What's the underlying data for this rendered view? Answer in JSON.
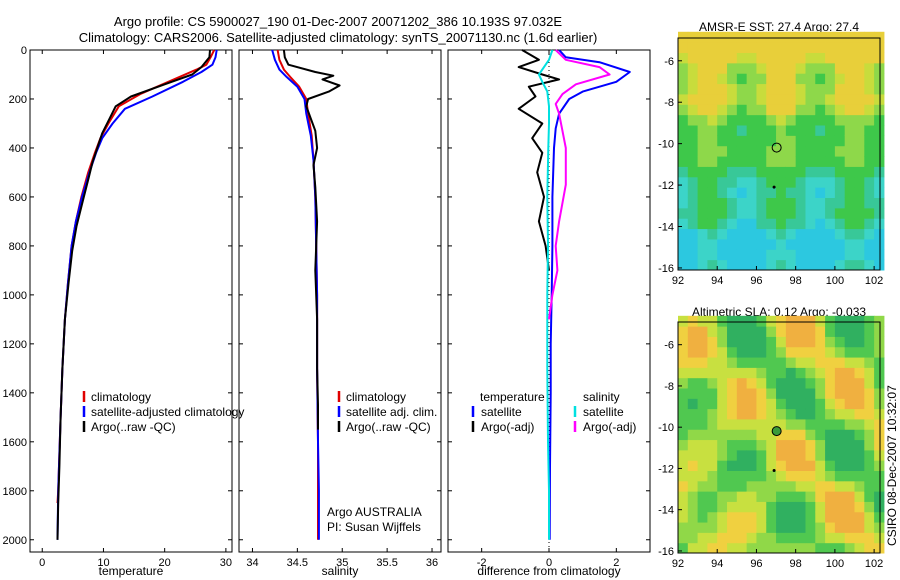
{
  "header": {
    "line1": "Argo profile: CS 5900027_190 01-Dec-2007 20071202_386 10.193S 97.032E",
    "line2": "Climatology: CARS2006. Satellite-adjusted climatology: synTS_20071130.nc (1.6d earlier)"
  },
  "side_text": "CSIRO 08-Dec-2007 10:32:07",
  "colors": {
    "climatology": "#e00000",
    "satellite": "#0000ff",
    "argo": "#000000",
    "satellite_salinity": "#00e0e0",
    "argo_adj_salinity": "#ff00ff"
  },
  "chart_data": [
    {
      "type": "line",
      "id": "temperature",
      "xlabel": "temperature",
      "ylabel": "",
      "xlim": [
        -2,
        31
      ],
      "ylim": [
        2050,
        0
      ],
      "xticks": [
        0,
        10,
        20,
        30
      ],
      "yticks": [
        0,
        200,
        400,
        600,
        800,
        1000,
        1200,
        1400,
        1600,
        1800,
        2000
      ],
      "legend": {
        "placement": "lower-right",
        "entries": [
          "climatology",
          "satellite-adjusted climatology",
          "Argo(..raw -QC)"
        ]
      },
      "series": [
        {
          "name": "climatology",
          "color": "#e00000",
          "x": [
            28.1,
            27.5,
            26.8,
            25.2,
            21.5,
            16.0,
            12.5,
            10.8,
            9.5,
            8.6,
            7.5,
            6.4,
            5.5,
            4.8,
            4.2,
            3.7,
            3.3,
            3.0,
            2.8,
            2.6,
            2.5
          ],
          "y": [
            0,
            30,
            60,
            80,
            120,
            180,
            230,
            300,
            360,
            420,
            500,
            600,
            700,
            800,
            950,
            1100,
            1300,
            1500,
            1650,
            1800,
            1850
          ]
        },
        {
          "name": "satellite-adjusted climatology",
          "color": "#0000ff",
          "x": [
            28.5,
            28.3,
            27.8,
            26.0,
            23.0,
            18.0,
            13.5,
            11.5,
            9.8,
            8.8,
            7.7,
            6.5,
            5.5,
            4.8,
            4.2,
            3.7,
            3.3,
            3.0,
            2.8,
            2.6,
            2.5
          ],
          "y": [
            0,
            30,
            60,
            90,
            130,
            190,
            240,
            300,
            360,
            420,
            500,
            600,
            700,
            800,
            950,
            1100,
            1300,
            1500,
            1650,
            1800,
            2000
          ]
        },
        {
          "name": "Argo(..raw -QC)",
          "color": "#000000",
          "x": [
            27.4,
            27.3,
            26.0,
            24.5,
            20.0,
            14.5,
            12.0,
            11.0,
            9.8,
            9.0,
            8.2,
            7.6,
            6.6,
            5.6,
            4.9,
            4.3,
            3.7,
            3.3,
            3.0,
            2.8,
            2.6,
            2.5
          ],
          "y": [
            0,
            30,
            70,
            100,
            140,
            190,
            230,
            280,
            340,
            400,
            460,
            520,
            620,
            720,
            820,
            950,
            1100,
            1300,
            1500,
            1700,
            1850,
            2000
          ]
        }
      ]
    },
    {
      "type": "line",
      "id": "salinity",
      "xlabel": "salinity",
      "ylabel": "",
      "xlim": [
        33.85,
        36.1
      ],
      "ylim": [
        2050,
        0
      ],
      "xticks": [
        34,
        34.5,
        35,
        35.5,
        36
      ],
      "xtick_labels": [
        "34",
        "34.5",
        "35",
        "35.5",
        "36"
      ],
      "legend": {
        "placement": "lower-right",
        "entries": [
          "climatology",
          "satellite adj. clim.",
          "Argo(..raw -QC)"
        ]
      },
      "annotation": [
        "Argo AUSTRALIA",
        "PI: Susan Wijffels"
      ],
      "series": [
        {
          "name": "climatology",
          "color": "#e00000",
          "x": [
            34.28,
            34.3,
            34.35,
            34.42,
            34.52,
            34.6,
            34.62,
            34.66,
            34.68,
            34.7,
            34.71,
            34.72,
            34.72,
            34.73,
            34.73,
            34.73
          ],
          "y": [
            0,
            40,
            80,
            110,
            150,
            200,
            260,
            350,
            450,
            600,
            800,
            1000,
            1300,
            1600,
            1800,
            2000
          ]
        },
        {
          "name": "satellite adj. clim.",
          "color": "#0000ff",
          "x": [
            34.22,
            34.25,
            34.3,
            34.38,
            34.5,
            34.58,
            34.6,
            34.65,
            34.68,
            34.7,
            34.71,
            34.72,
            34.72,
            34.73,
            34.74,
            34.74
          ],
          "y": [
            0,
            40,
            80,
            110,
            150,
            200,
            260,
            350,
            450,
            600,
            800,
            1000,
            1300,
            1600,
            1800,
            2000
          ]
        },
        {
          "name": "Argo(..raw -QC)",
          "color": "#000000",
          "x": [
            34.35,
            34.36,
            34.4,
            34.7,
            34.9,
            34.78,
            34.97,
            34.85,
            34.62,
            34.6,
            34.65,
            34.7,
            34.72,
            34.68,
            34.7,
            34.72,
            34.7,
            34.72,
            34.72,
            34.73,
            34.73
          ],
          "y": [
            0,
            30,
            60,
            90,
            105,
            120,
            145,
            170,
            200,
            230,
            280,
            330,
            400,
            470,
            560,
            700,
            900,
            1100,
            1300,
            1450,
            1550
          ]
        }
      ]
    },
    {
      "type": "line",
      "id": "difference",
      "xlabel": "difference from climatology",
      "ylabel": "",
      "xlim": [
        -3.0,
        3.0
      ],
      "ylim": [
        2050,
        0
      ],
      "xticks": [
        -2,
        0,
        2
      ],
      "legend": {
        "placement": "lower",
        "entries": [
          "temperature",
          "satellite",
          "Argo(-adj)",
          "salinity",
          "satellite",
          "Argo(-adj)"
        ]
      },
      "series": [
        {
          "name": "temperature satellite",
          "color": "#0000ff",
          "x": [
            0.3,
            0.5,
            1.5,
            2.4,
            2.0,
            1.0,
            0.6,
            0.3,
            0.2,
            0.15,
            0.1,
            0.1,
            0.08,
            0.05,
            0.05,
            0.03,
            0.02
          ],
          "y": [
            0,
            30,
            50,
            90,
            130,
            170,
            200,
            260,
            320,
            400,
            600,
            800,
            1000,
            1200,
            1400,
            1700,
            2000
          ]
        },
        {
          "name": "temperature Argo(-adj)",
          "color": "#000000",
          "x": [
            -0.8,
            -0.3,
            -0.9,
            -0.2,
            0.3,
            -0.6,
            -0.4,
            -0.9,
            -0.2,
            -0.5,
            -0.2,
            -0.35,
            -0.15,
            -0.3,
            -0.1,
            0.0
          ],
          "y": [
            0,
            40,
            70,
            100,
            120,
            150,
            190,
            240,
            300,
            360,
            420,
            500,
            600,
            700,
            800,
            900
          ]
        },
        {
          "name": "salinity satellite",
          "color": "#00e0e0",
          "x": [
            0.1,
            0.0,
            -0.15,
            -0.3,
            -0.2,
            -0.05,
            0.0,
            0.0,
            -0.02,
            -0.05,
            -0.03,
            -0.05,
            -0.05,
            -0.03,
            0.0,
            0.0
          ],
          "y": [
            0,
            40,
            70,
            100,
            130,
            170,
            230,
            300,
            400,
            600,
            800,
            1000,
            1300,
            1600,
            1800,
            2000
          ]
        },
        {
          "name": "salinity Argo(-adj)",
          "color": "#ff00ff",
          "x": [
            0.2,
            0.5,
            1.5,
            1.8,
            0.8,
            0.4,
            0.2,
            0.3,
            0.5,
            0.5,
            0.3,
            0.2,
            0.25,
            0.1,
            0.0
          ],
          "y": [
            0,
            40,
            70,
            100,
            140,
            180,
            220,
            260,
            400,
            550,
            700,
            800,
            900,
            1000,
            1100
          ]
        }
      ]
    },
    {
      "type": "heatmap",
      "id": "sst-map",
      "title": "AMSR-E SST: 27.4  Argo: 27.4",
      "xlim": [
        92,
        102.3
      ],
      "ylim": [
        -16.1,
        -4.9
      ],
      "xticks": [
        92,
        94,
        96,
        98,
        100,
        102
      ],
      "yticks": [
        -6,
        -8,
        -10,
        -12,
        -14,
        -16
      ],
      "argo_position": {
        "lon": 97.03,
        "lat": -10.19
      },
      "track_position": {
        "lon": 96.9,
        "lat": -12.1
      }
    },
    {
      "type": "heatmap",
      "id": "sla-map",
      "title": "Altimetric SLA: 0.12  Argo: -0.033",
      "xlim": [
        92,
        102.3
      ],
      "ylim": [
        -16.1,
        -4.9
      ],
      "xticks": [
        92,
        94,
        96,
        98,
        100,
        102
      ],
      "yticks": [
        -6,
        -8,
        -10,
        -12,
        -14,
        -16
      ],
      "argo_position": {
        "lon": 97.03,
        "lat": -10.19
      },
      "track_position": {
        "lon": 96.9,
        "lat": -12.1
      }
    }
  ]
}
